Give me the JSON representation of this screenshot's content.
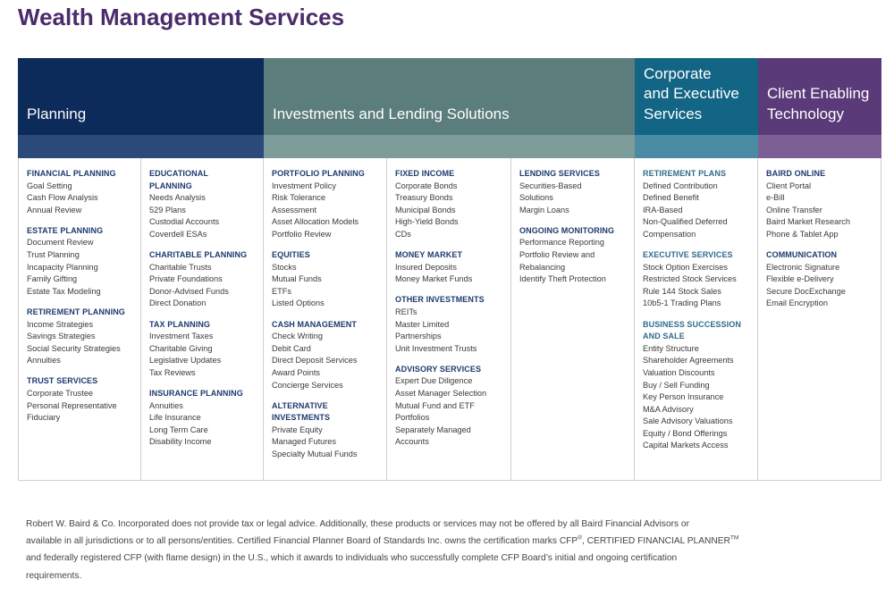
{
  "title": "Wealth Management Services",
  "colors": {
    "title": "#4a2c6b",
    "planning": "#0d2b5a",
    "planning_sub": "#2b4a7a",
    "investments": "#5b7d7b",
    "investments_sub": "#7e9c99",
    "corporate": "#136585",
    "corporate_sub": "#4a8aa3",
    "technology": "#5a3a78",
    "technology_sub": "#7c5f95"
  },
  "headers": {
    "planning": "Planning",
    "investments": "Investments and Lending Solutions",
    "corporate": [
      "Corporate",
      "and Executive",
      "Services"
    ],
    "technology": [
      "Client Enabling",
      "Technology"
    ]
  },
  "columns": [
    [
      {
        "heading": "FINANCIAL PLANNING",
        "items": [
          "Goal Setting",
          "Cash Flow Analysis",
          "Annual Review"
        ]
      },
      {
        "heading": "ESTATE PLANNING",
        "items": [
          "Document Review",
          "Trust Planning",
          "Incapacity Planning",
          "Family Gifting",
          "Estate Tax Modeling"
        ]
      },
      {
        "heading": "RETIREMENT PLANNING",
        "items": [
          "Income Strategies",
          "Savings Strategies",
          "Social Security Strategies",
          "Annuities"
        ]
      },
      {
        "heading": "TRUST SERVICES",
        "items": [
          "Corporate Trustee",
          "Personal Representative",
          "Fiduciary"
        ]
      }
    ],
    [
      {
        "heading": [
          "EDUCATIONAL",
          "PLANNING"
        ],
        "items": [
          "Needs Analysis",
          "529 Plans",
          "Custodial Accounts",
          "Coverdell ESAs"
        ]
      },
      {
        "heading": "CHARITABLE PLANNING",
        "items": [
          "Charitable Trusts",
          "Private Foundations",
          "Donor-Advised Funds",
          "Direct Donation"
        ]
      },
      {
        "heading": "TAX PLANNING",
        "items": [
          "Investment Taxes",
          "Charitable Giving",
          "Legislative Updates",
          "Tax Reviews"
        ]
      },
      {
        "heading": "INSURANCE PLANNING",
        "items": [
          "Annuities",
          "Life Insurance",
          "Long Term Care",
          "Disability Income"
        ]
      }
    ],
    [
      {
        "heading": "PORTFOLIO PLANNING",
        "items": [
          "Investment Policy",
          "Risk Tolerance",
          "Assessment",
          "Asset Allocation Models",
          "Portfolio Review"
        ]
      },
      {
        "heading": "EQUITIES",
        "items": [
          "Stocks",
          "Mutual Funds",
          "ETFs",
          "Listed Options"
        ]
      },
      {
        "heading": "CASH MANAGEMENT",
        "items": [
          "Check Writing",
          "Debit Card",
          "Direct Deposit Services",
          "Award Points",
          "Concierge Services"
        ]
      },
      {
        "heading": [
          "ALTERNATIVE",
          "INVESTMENTS"
        ],
        "items": [
          "Private Equity",
          "Managed Futures",
          "Specialty Mutual Funds"
        ]
      }
    ],
    [
      {
        "heading": "FIXED INCOME",
        "items": [
          "Corporate Bonds",
          "Treasury Bonds",
          "Municipal Bonds",
          "High-Yield Bonds",
          "CDs"
        ]
      },
      {
        "heading": "MONEY MARKET",
        "items": [
          "Insured Deposits",
          "Money Market Funds"
        ]
      },
      {
        "heading": "OTHER INVESTMENTS",
        "items": [
          "REITs",
          "Master Limited",
          "Partnerships",
          "Unit Investment Trusts"
        ]
      },
      {
        "heading": "ADVISORY SERVICES",
        "items": [
          "Expert Due Diligence",
          "Asset Manager Selection",
          "Mutual Fund and ETF",
          "Portfolios",
          "Separately Managed",
          "Accounts"
        ]
      }
    ],
    [
      {
        "heading": "LENDING SERVICES",
        "items": [
          "Securities-Based",
          "Solutions",
          "Margin Loans"
        ]
      },
      {
        "heading": "ONGOING MONITORING",
        "items": [
          "Performance Reporting",
          "Portfolio Review and",
          "Rebalancing",
          "Identify Theft Protection"
        ]
      }
    ],
    [
      {
        "heading": "RETIREMENT PLANS",
        "items": [
          "Defined Contribution",
          "Defined Benefit",
          "IRA-Based",
          "Non-Qualified Deferred",
          "Compensation"
        ]
      },
      {
        "heading": "EXECUTIVE SERVICES",
        "items": [
          "Stock Option Exercises",
          "Restricted Stock Services",
          "Rule 144 Stock Sales",
          "10b5-1 Trading Plans"
        ]
      },
      {
        "heading": [
          "BUSINESS SUCCESSION",
          "AND SALE"
        ],
        "items": [
          "Entity Structure",
          "Shareholder Agreements",
          "Valuation Discounts",
          "Buy / Sell Funding",
          "Key Person Insurance",
          "M&A Advisory",
          "Sale Advisory Valuations",
          "Equity / Bond Offerings",
          "Capital Markets Access"
        ]
      }
    ],
    [
      {
        "heading": "BAIRD ONLINE",
        "items": [
          "Client Portal",
          "e-Bill",
          "Online Transfer",
          "Baird Market Research",
          "Phone & Tablet App"
        ]
      },
      {
        "heading": "COMMUNICATION",
        "items": [
          "Electronic Signature",
          "Flexible e-Delivery",
          "Secure DocExchange",
          "Email Encryption"
        ]
      }
    ]
  ],
  "footer": {
    "line1": "Robert W. Baird & Co. Incorporated does not provide tax or legal advice. Additionally, these products or services may not be offered by all Baird Financial Advisors or",
    "line2a": "available in all jurisdictions or to all persons/entities. Certified Financial Planner Board of Standards Inc. owns the certification marks CFP",
    "line2_sup1": "®",
    "line2b": ", CERTIFIED FINANCIAL PLANNER",
    "line2_sup2": "TM",
    "line3": "and federally registered CFP (with flame design) in the U.S., which it awards to individuals who successfully complete CFP Board’s initial and ongoing certification",
    "line4": "requirements."
  }
}
